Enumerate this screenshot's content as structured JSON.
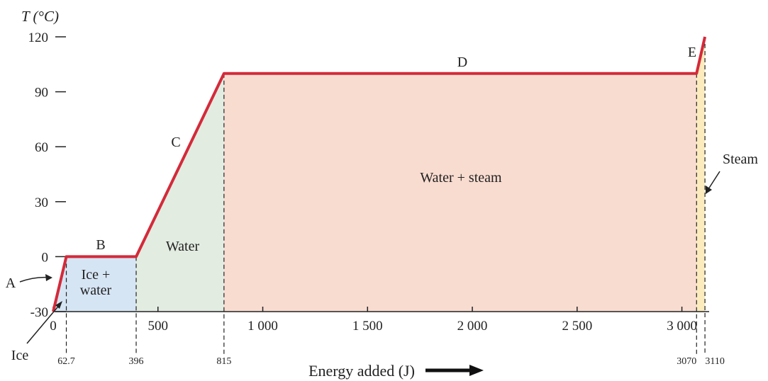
{
  "chart_data": {
    "type": "line",
    "y_label": "T (°C)",
    "x_label": "Energy added (J)",
    "x": [
      0,
      62.7,
      396,
      815,
      3070,
      3110
    ],
    "values": [
      -30,
      0,
      0,
      100,
      100,
      120
    ],
    "color": "#d42a3a",
    "segments": [
      "A",
      "B",
      "C",
      "D",
      "E"
    ],
    "phases": [
      "Ice",
      "Ice + water",
      "Water",
      "Water + steam",
      "Steam"
    ],
    "phase_colors": [
      "#cfe0f2",
      "#cfe0f2",
      "#dde9dc",
      "#f8d6c8",
      "#fbe8b0"
    ],
    "xlim": [
      0,
      3130
    ],
    "ylim": [
      -30,
      120
    ],
    "xticks": [
      0,
      500,
      {
        "value": 1000,
        "label": "1 000"
      },
      {
        "value": 1500,
        "label": "1 500"
      },
      {
        "value": 2000,
        "label": "2 000"
      },
      {
        "value": 2500,
        "label": "2 500"
      },
      {
        "value": 3000,
        "label": "3 000"
      }
    ],
    "yticks": [
      -30,
      0,
      30,
      60,
      90,
      120
    ],
    "xmarkers": [
      62.7,
      396,
      815,
      3070,
      3110
    ]
  }
}
